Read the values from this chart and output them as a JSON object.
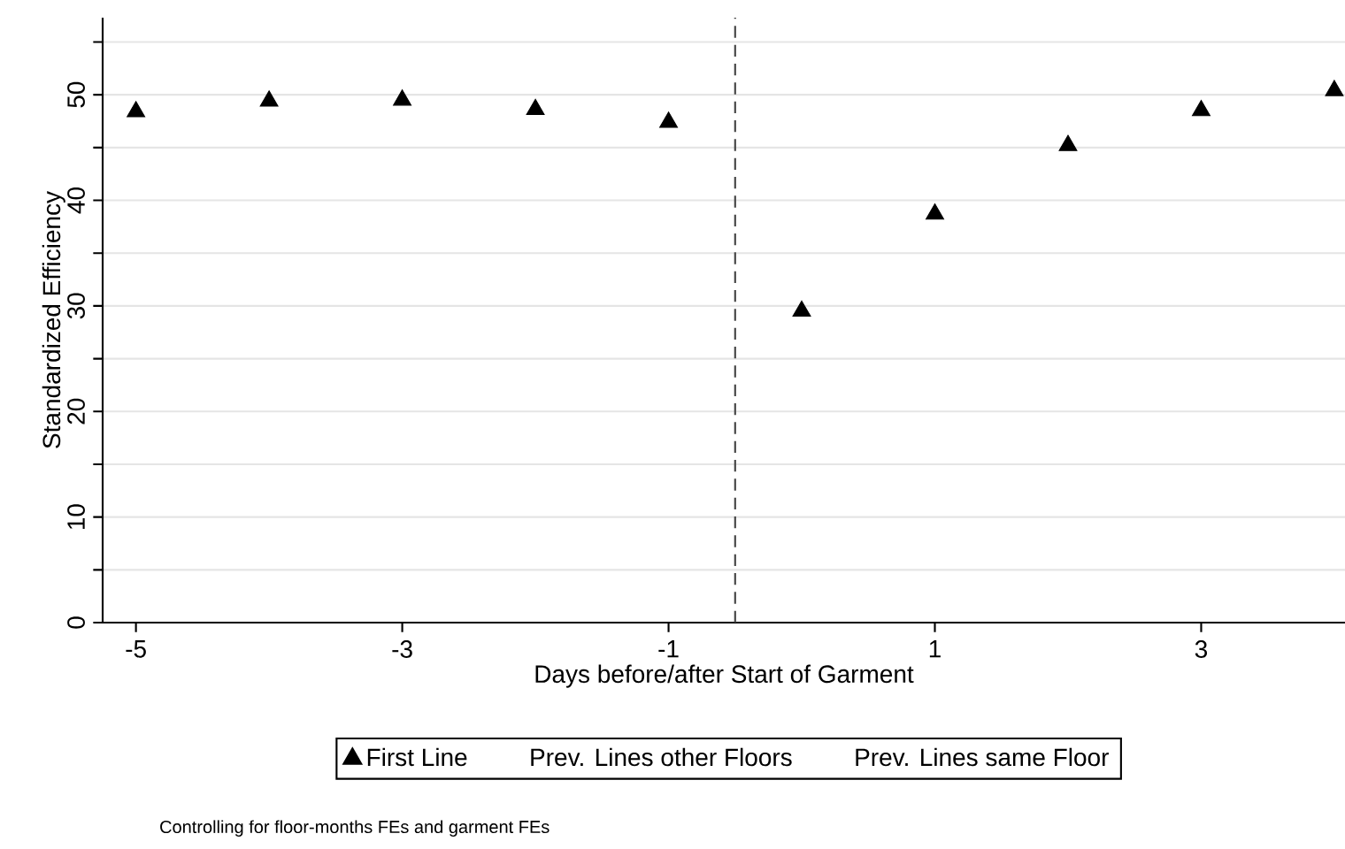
{
  "chart_data": {
    "type": "scatter",
    "xlabel": "Days before/after Start of Garment",
    "ylabel": "Standardized Efficiency",
    "x": [
      -5,
      -4,
      -3,
      -2,
      -1,
      0,
      1,
      2,
      3,
      4
    ],
    "series": [
      {
        "name": "First Line",
        "color": "#000000",
        "values": [
          48.4,
          49.4,
          49.5,
          48.6,
          47.4,
          29.5,
          38.7,
          45.2,
          48.5,
          50.4
        ]
      },
      {
        "name": "Prev. Lines other Floors",
        "values": [
          null,
          null,
          null,
          null,
          null,
          null,
          null,
          null,
          null,
          null
        ]
      },
      {
        "name": "Prev. Lines same Floor",
        "values": [
          null,
          null,
          null,
          null,
          null,
          null,
          null,
          null,
          null,
          null
        ]
      }
    ],
    "xlim": [
      -5.25,
      4.08
    ],
    "ylim": [
      0,
      57.3
    ],
    "xticks": [
      -5,
      -3,
      -1,
      1,
      3
    ],
    "yticks": [
      0,
      {
        "value": 5,
        "label": null
      },
      10,
      {
        "value": 15,
        "label": null
      },
      20,
      {
        "value": 25,
        "label": null
      },
      30,
      {
        "value": 35,
        "label": null
      },
      40,
      {
        "value": 45,
        "label": null
      },
      50,
      {
        "value": 55,
        "label": null
      }
    ],
    "grid": "y",
    "marker": "triangle",
    "legend": "bottom",
    "ref_lines": [
      {
        "axis": "x",
        "value": -0.5,
        "line_style": "dashed",
        "color": "#444444"
      }
    ],
    "annotations": [
      "Controlling for floor-months FEs and garment FEs"
    ]
  }
}
